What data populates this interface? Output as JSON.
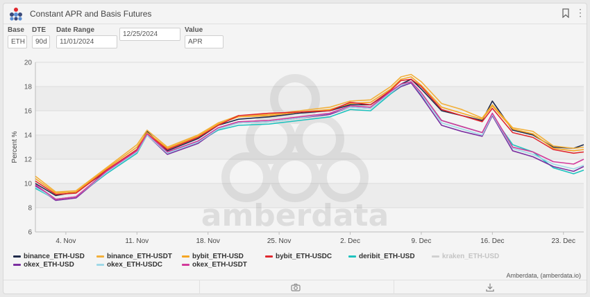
{
  "header": {
    "title": "Constant APR and Basis Futures"
  },
  "controls": [
    {
      "label": "Base",
      "value": "ETH"
    },
    {
      "label": "DTE",
      "value": "90d"
    },
    {
      "label": "Date Range",
      "value": "11/01/2024"
    },
    {
      "label": "",
      "value": "12/25/2024"
    },
    {
      "label": "Value",
      "value": "APR"
    }
  ],
  "icons": {
    "logo": "amberdata-logo-icon",
    "bookmark": "bookmark-icon",
    "menu": "kebab-menu-icon",
    "camera": "camera-icon",
    "download": "download-icon"
  },
  "watermark": "amberdata",
  "credit": "Amberdata, (amberdata.io)",
  "chart_data": {
    "type": "line",
    "title": "",
    "ylabel": "Percent %",
    "xlabel": "",
    "ylim": [
      6,
      20
    ],
    "yticks": [
      6,
      8,
      10,
      12,
      14,
      16,
      18,
      20
    ],
    "xrange": [
      "2024-11-01",
      "2024-12-25"
    ],
    "xticks": [
      {
        "date": "2024-11-04",
        "label": "4. Nov"
      },
      {
        "date": "2024-11-11",
        "label": "11. Nov"
      },
      {
        "date": "2024-11-18",
        "label": "18. Nov"
      },
      {
        "date": "2024-11-25",
        "label": "25. Nov"
      },
      {
        "date": "2024-12-02",
        "label": "2. Dec"
      },
      {
        "date": "2024-12-09",
        "label": "9. Dec"
      },
      {
        "date": "2024-12-16",
        "label": "16. Dec"
      },
      {
        "date": "2024-12-23",
        "label": "23. Dec"
      }
    ],
    "grid": true,
    "legend_position": "bottom",
    "base_dates": [
      "2024-11-01",
      "2024-11-03",
      "2024-11-05",
      "2024-11-08",
      "2024-11-11",
      "2024-11-12",
      "2024-11-14",
      "2024-11-17",
      "2024-11-19",
      "2024-11-21",
      "2024-11-24",
      "2024-11-27",
      "2024-11-30",
      "2024-12-02",
      "2024-12-04",
      "2024-12-06",
      "2024-12-07",
      "2024-12-08",
      "2024-12-09",
      "2024-12-11",
      "2024-12-13",
      "2024-12-15",
      "2024-12-16",
      "2024-12-18",
      "2024-12-20",
      "2024-12-22",
      "2024-12-24",
      "2024-12-25"
    ],
    "series": [
      {
        "name": "binance_ETH-USD",
        "color": "#1f2a4a",
        "visible": true,
        "values": [
          10.0,
          9.0,
          9.3,
          11.0,
          12.8,
          14.3,
          12.7,
          13.7,
          14.8,
          15.3,
          15.5,
          15.8,
          16.0,
          16.5,
          16.5,
          17.6,
          18.2,
          18.6,
          17.8,
          16.0,
          15.6,
          15.2,
          16.8,
          14.4,
          14.0,
          13.0,
          12.9,
          13.2
        ]
      },
      {
        "name": "binance_ETH-USDT",
        "color": "#f2b03a",
        "visible": true,
        "values": [
          10.6,
          9.3,
          9.4,
          11.3,
          13.2,
          14.4,
          13.0,
          14.0,
          15.0,
          15.6,
          15.7,
          16.0,
          16.3,
          16.8,
          16.9,
          18.0,
          18.8,
          19.0,
          18.4,
          16.6,
          16.1,
          15.4,
          16.5,
          14.6,
          14.3,
          13.1,
          12.9,
          13.0
        ]
      },
      {
        "name": "bybit_ETH-USD",
        "color": "#f5a623",
        "visible": true,
        "values": [
          10.4,
          9.2,
          9.3,
          11.2,
          13.0,
          14.2,
          12.9,
          13.9,
          14.9,
          15.5,
          15.6,
          15.9,
          16.1,
          16.6,
          16.7,
          17.8,
          18.6,
          18.8,
          18.1,
          16.3,
          15.8,
          15.3,
          16.4,
          14.5,
          14.1,
          12.9,
          12.7,
          12.8
        ]
      },
      {
        "name": "bybit_ETH-USDC",
        "color": "#e0282e",
        "visible": true,
        "values": [
          10.2,
          9.1,
          9.2,
          11.1,
          12.8,
          14.1,
          12.8,
          13.8,
          14.8,
          15.6,
          15.8,
          15.9,
          16.0,
          16.7,
          16.5,
          17.7,
          18.5,
          18.6,
          18.0,
          16.1,
          15.6,
          15.1,
          16.2,
          14.2,
          13.8,
          12.8,
          12.5,
          12.6
        ]
      },
      {
        "name": "deribit_ETH-USD",
        "color": "#1ec2be",
        "visible": true,
        "values": [
          9.6,
          8.7,
          8.9,
          10.8,
          12.5,
          14.0,
          12.5,
          13.4,
          14.4,
          14.8,
          14.9,
          15.2,
          15.5,
          16.1,
          16.0,
          17.4,
          18.0,
          18.3,
          17.3,
          15.2,
          14.7,
          14.2,
          15.6,
          13.2,
          12.6,
          11.3,
          10.8,
          11.1
        ]
      },
      {
        "name": "kraken_ETH-USD",
        "color": "#c8c8c8",
        "visible": false,
        "values": []
      },
      {
        "name": "okex_ETH-USD",
        "color": "#7b2fa0",
        "visible": true,
        "values": [
          9.8,
          8.6,
          8.8,
          10.9,
          12.6,
          14.0,
          12.4,
          13.3,
          14.5,
          15.0,
          15.1,
          15.4,
          15.7,
          16.3,
          16.2,
          17.5,
          18.0,
          18.3,
          17.2,
          14.8,
          14.3,
          13.9,
          15.6,
          12.7,
          12.2,
          11.4,
          11.0,
          11.4
        ]
      },
      {
        "name": "okex_ETH-USDC",
        "color": "#9fd9e8",
        "visible": true,
        "values": [
          9.7,
          8.7,
          8.9,
          10.9,
          12.6,
          14.0,
          12.5,
          13.4,
          14.5,
          15.0,
          15.1,
          15.4,
          15.8,
          16.3,
          16.2,
          17.5,
          18.1,
          18.4,
          17.4,
          15.0,
          14.5,
          14.0,
          15.7,
          12.9,
          12.4,
          11.6,
          11.2,
          11.5
        ]
      },
      {
        "name": "okex_ETH-USDT",
        "color": "#d23a9a",
        "visible": true,
        "values": [
          9.9,
          8.7,
          8.9,
          11.0,
          12.7,
          14.1,
          12.6,
          13.5,
          14.6,
          15.1,
          15.2,
          15.5,
          15.8,
          16.4,
          16.3,
          17.6,
          18.2,
          18.4,
          17.5,
          15.2,
          14.7,
          14.2,
          15.8,
          13.0,
          12.6,
          11.8,
          11.6,
          12.0
        ]
      }
    ]
  }
}
